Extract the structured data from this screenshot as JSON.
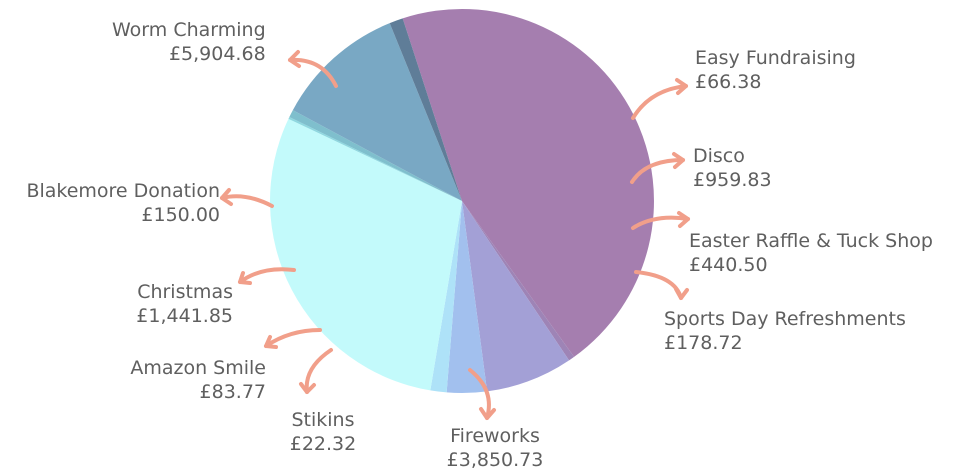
{
  "chart_data": {
    "type": "pie",
    "title": "",
    "slices": [
      {
        "label": "Worm Charming",
        "value": 5904.68,
        "display": "£5,904.68",
        "color": "#a57eaf"
      },
      {
        "label": "Easy Fundraising",
        "value": 66.38,
        "display": "£66.38",
        "color": "#9e84b6"
      },
      {
        "label": "Disco",
        "value": 959.83,
        "display": "£959.83",
        "color": "#a3a0d6"
      },
      {
        "label": "Easter Raffle & Tuck Shop",
        "value": 440.5,
        "display": "£440.50",
        "color": "#a2c0ee"
      },
      {
        "label": "Sports Day Refreshments",
        "value": 178.72,
        "display": "£178.72",
        "color": "#aee2f8"
      },
      {
        "label": "Fireworks",
        "value": 3850.73,
        "display": "£3,850.73",
        "color": "#c3fafb"
      },
      {
        "label": "Stikins",
        "value": 22.32,
        "display": "£22.32",
        "color": "#8fd8e0"
      },
      {
        "label": "Amazon Smile",
        "value": 83.77,
        "display": "£83.77",
        "color": "#7fbfcd"
      },
      {
        "label": "Christmas",
        "value": 1441.85,
        "display": "£1,441.85",
        "color": "#79a8c4"
      },
      {
        "label": "Blakemore Donation",
        "value": 150.0,
        "display": "£150.00",
        "color": "#5f7d98"
      }
    ],
    "legend": "none",
    "label_color": "#5f5f5f",
    "arrow_color": "#f19f8a"
  }
}
